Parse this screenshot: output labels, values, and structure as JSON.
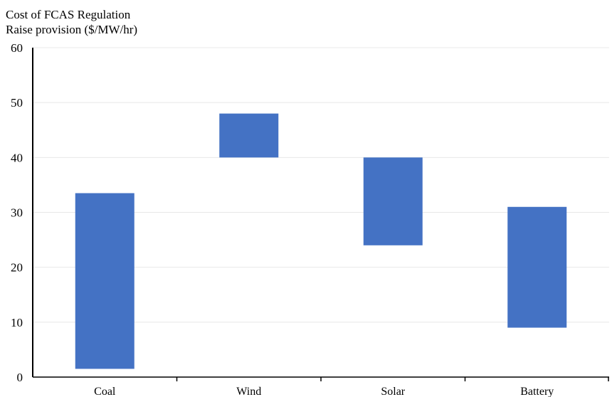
{
  "chart_data": {
    "type": "bar",
    "title": "",
    "xlabel": "",
    "ylabel_lines": [
      "Cost of FCAS Regulation",
      "Raise provision ($/MW/hr)"
    ],
    "categories": [
      "Coal",
      "Wind",
      "Solar",
      "Battery"
    ],
    "ranges": [
      {
        "low": 1.5,
        "high": 33.5
      },
      {
        "low": 40,
        "high": 48
      },
      {
        "low": 24,
        "high": 40
      },
      {
        "low": 9,
        "high": 31
      }
    ],
    "ylim": [
      0,
      60
    ],
    "yticks": [
      0,
      10,
      20,
      30,
      40,
      50,
      60
    ],
    "grid": true,
    "legend": "none",
    "bar_color": "#4472C4",
    "grid_color": "#e8e8e8",
    "axis_color": "#000000"
  }
}
